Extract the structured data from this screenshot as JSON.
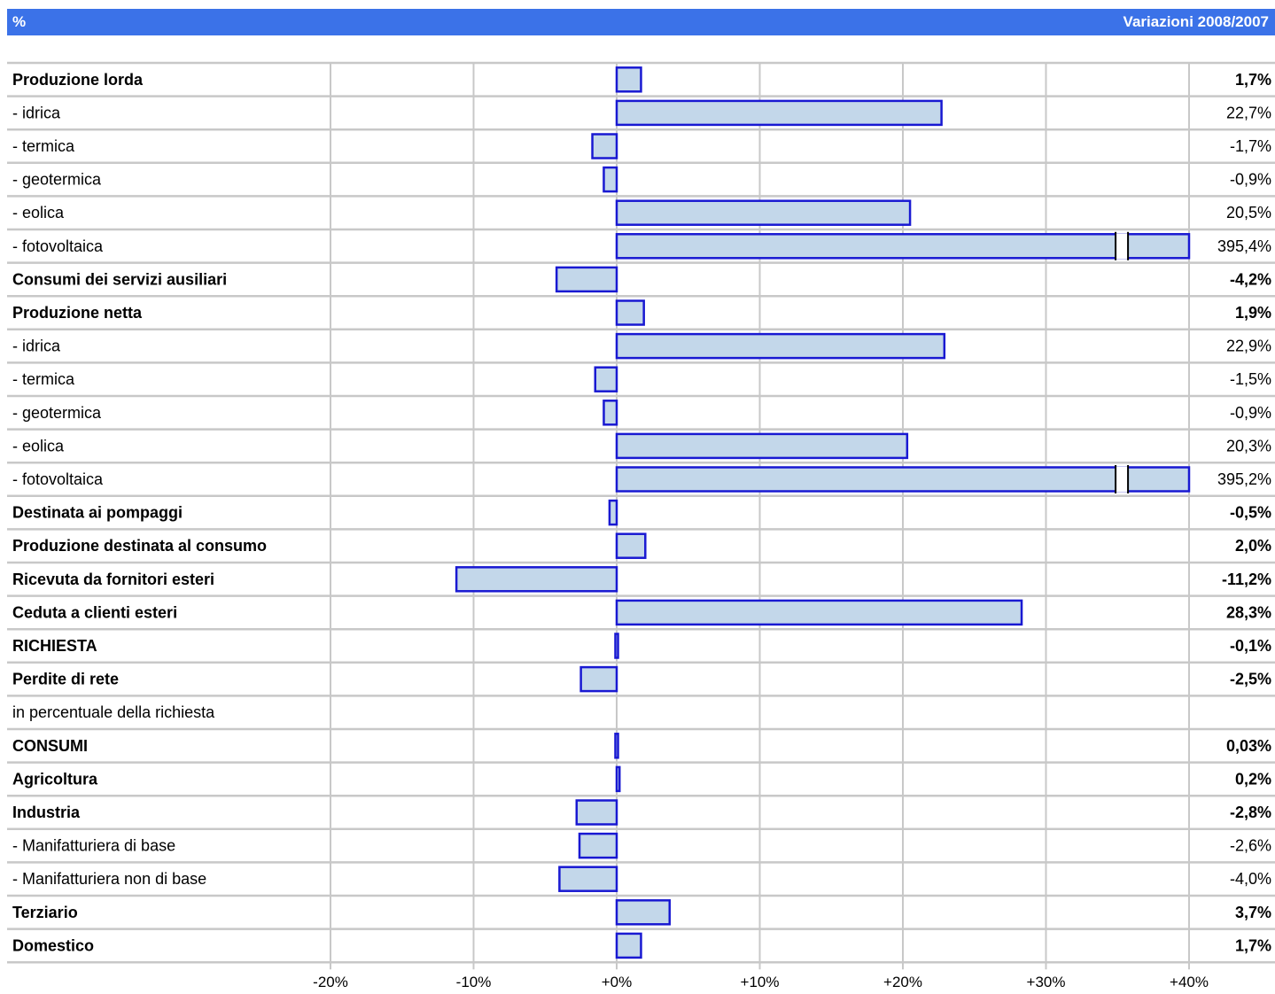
{
  "header": {
    "left": "%",
    "right": "Variazioni 2008/2007"
  },
  "colors": {
    "header_bg": "#3b72e8",
    "bar_fill": "#c3d7ea",
    "bar_stroke": "#1919d2",
    "grid": "#c8c8c8"
  },
  "chart_data": {
    "type": "bar",
    "orientation": "horizontal",
    "xlim": [
      -20,
      40
    ],
    "ticks": [
      -20,
      -10,
      0,
      10,
      20,
      30,
      40
    ],
    "tick_labels": [
      "-20%",
      "-10%",
      "+0%",
      "+10%",
      "+20%",
      "+30%",
      "+40%"
    ],
    "grid": true,
    "rows": [
      {
        "label": "Produzione lorda",
        "value": 1.7,
        "display": "1,7%",
        "bold": true
      },
      {
        "label": "- idrica",
        "value": 22.7,
        "display": "22,7%",
        "bold": false
      },
      {
        "label": "- termica",
        "value": -1.7,
        "display": "-1,7%",
        "bold": false
      },
      {
        "label": "- geotermica",
        "value": -0.9,
        "display": "-0,9%",
        "bold": false
      },
      {
        "label": "- eolica",
        "value": 20.5,
        "display": "20,5%",
        "bold": false
      },
      {
        "label": "- fotovoltaica",
        "value": 395.4,
        "display": "395,4%",
        "bold": false,
        "axis_break": true
      },
      {
        "label": "Consumi dei servizi ausiliari",
        "value": -4.2,
        "display": "-4,2%",
        "bold": true
      },
      {
        "label": "Produzione netta",
        "value": 1.9,
        "display": "1,9%",
        "bold": true
      },
      {
        "label": "- idrica",
        "value": 22.9,
        "display": "22,9%",
        "bold": false
      },
      {
        "label": "- termica",
        "value": -1.5,
        "display": "-1,5%",
        "bold": false
      },
      {
        "label": "- geotermica",
        "value": -0.9,
        "display": "-0,9%",
        "bold": false
      },
      {
        "label": "- eolica",
        "value": 20.3,
        "display": "20,3%",
        "bold": false
      },
      {
        "label": "- fotovoltaica",
        "value": 395.2,
        "display": "395,2%",
        "bold": false,
        "axis_break": true
      },
      {
        "label": "Destinata ai pompaggi",
        "value": -0.5,
        "display": "-0,5%",
        "bold": true
      },
      {
        "label": "Produzione destinata al consumo",
        "value": 2.0,
        "display": "2,0%",
        "bold": true
      },
      {
        "label": "Ricevuta da fornitori esteri",
        "value": -11.2,
        "display": "-11,2%",
        "bold": true
      },
      {
        "label": "Ceduta a clienti esteri",
        "value": 28.3,
        "display": "28,3%",
        "bold": true
      },
      {
        "label": "RICHIESTA",
        "value": -0.1,
        "display": "-0,1%",
        "bold": true
      },
      {
        "label": "Perdite di rete",
        "value": -2.5,
        "display": "-2,5%",
        "bold": true
      },
      {
        "label": "in percentuale della richiesta",
        "value": null,
        "display": "",
        "bold": false
      },
      {
        "label": "CONSUMI",
        "value": 0.03,
        "display": "0,03%",
        "bold": true
      },
      {
        "label": "Agricoltura",
        "value": 0.2,
        "display": "0,2%",
        "bold": true
      },
      {
        "label": "Industria",
        "value": -2.8,
        "display": "-2,8%",
        "bold": true
      },
      {
        "label": " - Manifatturiera di base",
        "value": -2.6,
        "display": "-2,6%",
        "bold": false
      },
      {
        "label": " - Manifatturiera non di base",
        "value": -4.0,
        "display": "-4,0%",
        "bold": false
      },
      {
        "label": "Terziario",
        "value": 3.7,
        "display": "3,7%",
        "bold": true
      },
      {
        "label": "Domestico",
        "value": 1.7,
        "display": "1,7%",
        "bold": true
      }
    ]
  }
}
